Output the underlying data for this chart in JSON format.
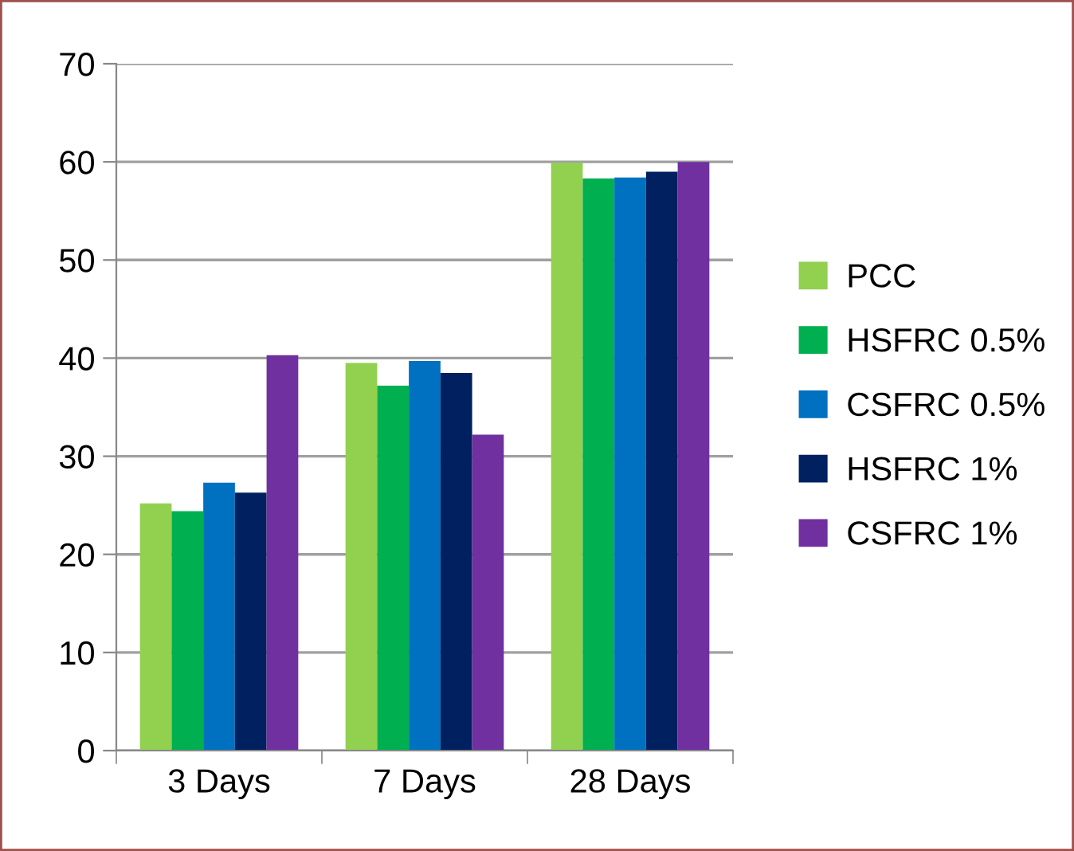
{
  "chart_data": {
    "type": "bar",
    "categories": [
      "3 Days",
      "7 Days",
      "28 Days"
    ],
    "series": [
      {
        "name": "PCC",
        "color": "#92d050",
        "values": [
          25.2,
          39.5,
          59.9
        ]
      },
      {
        "name": "HSFRC 0.5%",
        "color": "#00b050",
        "values": [
          24.4,
          37.2,
          58.3
        ]
      },
      {
        "name": "CSFRC 0.5%",
        "color": "#0070c0",
        "values": [
          27.3,
          39.7,
          58.4
        ]
      },
      {
        "name": "HSFRC 1%",
        "color": "#002060",
        "values": [
          26.3,
          38.5,
          59.0
        ]
      },
      {
        "name": "CSFRC 1%",
        "color": "#7030a0",
        "values": [
          40.3,
          32.2,
          60.0
        ]
      }
    ],
    "ylim": [
      0,
      70
    ],
    "yticks": [
      0,
      10,
      20,
      30,
      40,
      50,
      60,
      70
    ],
    "grid": "y",
    "legend": "right"
  }
}
